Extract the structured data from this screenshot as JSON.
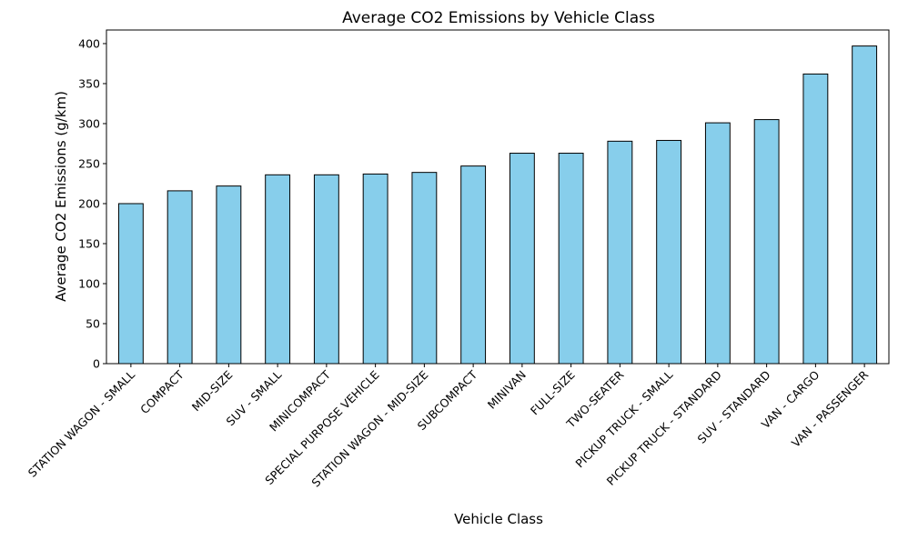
{
  "chart_data": {
    "type": "bar",
    "title": "Average CO2 Emissions by Vehicle Class",
    "xlabel": "Vehicle Class",
    "ylabel": "Average CO2 Emissions (g/km)",
    "categories": [
      "STATION WAGON - SMALL",
      "COMPACT",
      "MID-SIZE",
      "SUV - SMALL",
      "MINICOMPACT",
      "SPECIAL PURPOSE VEHICLE",
      "STATION WAGON - MID-SIZE",
      "SUBCOMPACT",
      "MINIVAN",
      "FULL-SIZE",
      "TWO-SEATER",
      "PICKUP TRUCK - SMALL",
      "PICKUP TRUCK - STANDARD",
      "SUV - STANDARD",
      "VAN - CARGO",
      "VAN - PASSENGER"
    ],
    "values": [
      200,
      216,
      222,
      236,
      236,
      237,
      239,
      247,
      263,
      263,
      278,
      279,
      301,
      305,
      362,
      397
    ],
    "ylim": [
      0,
      417
    ],
    "yticks": [
      0,
      50,
      100,
      150,
      200,
      250,
      300,
      350,
      400
    ],
    "grid": false,
    "bar_color": "#87CEEB",
    "bar_edge_color": "#000000"
  }
}
